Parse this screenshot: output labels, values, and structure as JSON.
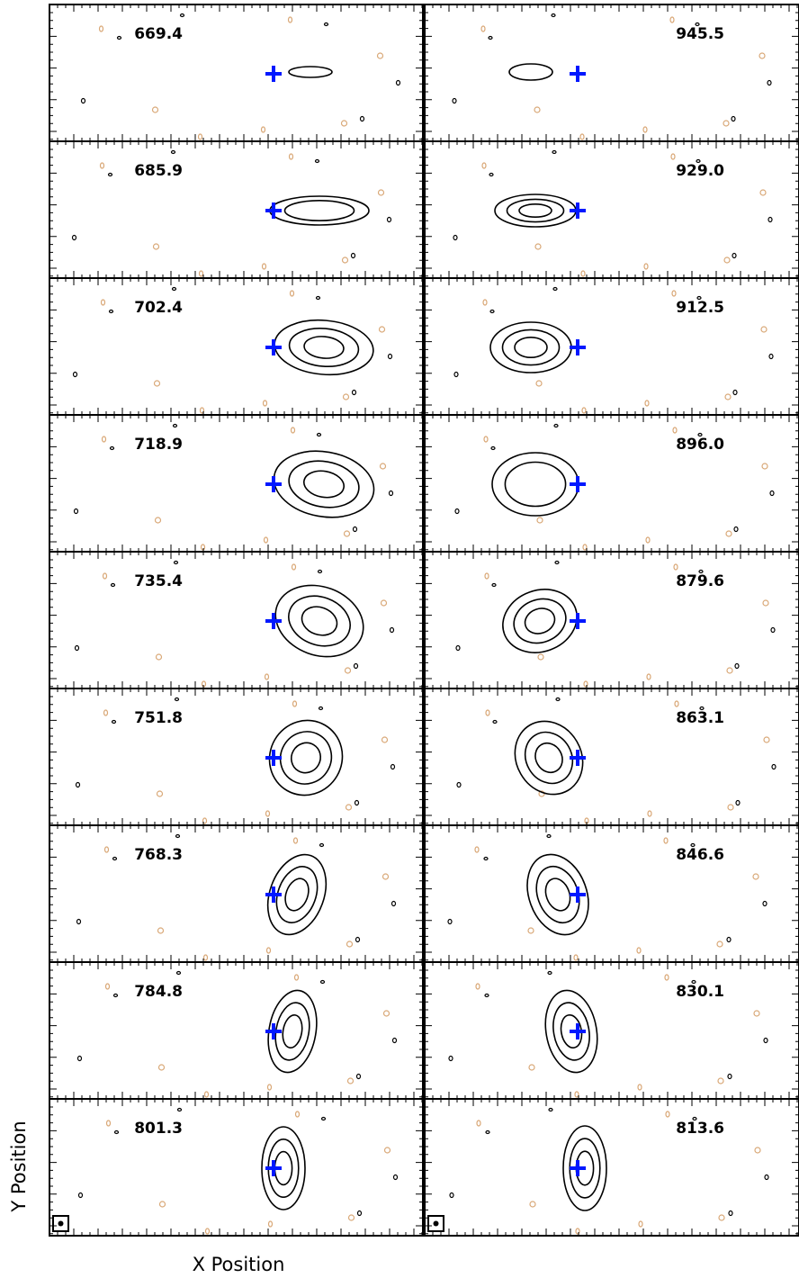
{
  "chart_data": {
    "type": "channel-map",
    "xlabel": "X Position",
    "ylabel": "Y Position",
    "panels": [
      {
        "label": "669.4"
      },
      {
        "label": "945.5"
      },
      {
        "label": "685.9"
      },
      {
        "label": "929.0"
      },
      {
        "label": "702.4"
      },
      {
        "label": "912.5"
      },
      {
        "label": "718.9"
      },
      {
        "label": "896.0"
      },
      {
        "label": "735.4"
      },
      {
        "label": "879.6"
      },
      {
        "label": "751.8"
      },
      {
        "label": "863.1"
      },
      {
        "label": "768.3"
      },
      {
        "label": "846.6"
      },
      {
        "label": "784.8"
      },
      {
        "label": "830.1"
      },
      {
        "label": "801.3"
      },
      {
        "label": "813.6"
      }
    ]
  }
}
